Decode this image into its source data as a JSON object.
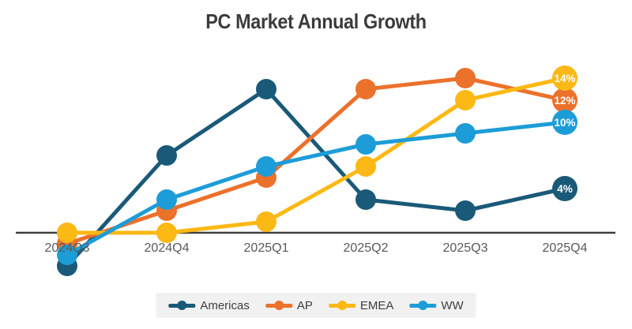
{
  "title": "PC Market Annual Growth",
  "chart_data": {
    "type": "line",
    "title": "PC Market Annual Growth",
    "categories": [
      "2024Q3",
      "2024Q4",
      "2025Q1",
      "2025Q2",
      "2025Q3",
      "2025Q4"
    ],
    "series": [
      {
        "name": "Americas",
        "color": "#1A5A78",
        "values": [
          -3,
          7,
          13,
          3,
          2,
          4
        ],
        "end_label": "4%"
      },
      {
        "name": "AP",
        "color": "#EC712B",
        "values": [
          -1,
          2,
          5,
          13,
          14,
          12
        ],
        "end_label": "12%"
      },
      {
        "name": "EMEA",
        "color": "#FCB814",
        "values": [
          0,
          0,
          1,
          6,
          12,
          14
        ],
        "end_label": "14%"
      },
      {
        "name": "WW",
        "color": "#1C9DD8",
        "values": [
          -2,
          3,
          6,
          8,
          9,
          10
        ],
        "end_label": "10%"
      }
    ],
    "xlabel": "",
    "ylabel": "",
    "ylim": [
      -4,
      16
    ],
    "grid": false,
    "y_axis_labels_visible": false,
    "legend_position": "bottom",
    "value_suffix": "%",
    "colors": {
      "axis_line": "#3F3F3F",
      "tick_label": "#595959",
      "title_text": "#3B3B3B",
      "legend_bg": "#F1F1F1",
      "legend_text": "#3F3F3F",
      "end_label_text": "#FFFFFF",
      "background": "#FFFFFF"
    }
  }
}
